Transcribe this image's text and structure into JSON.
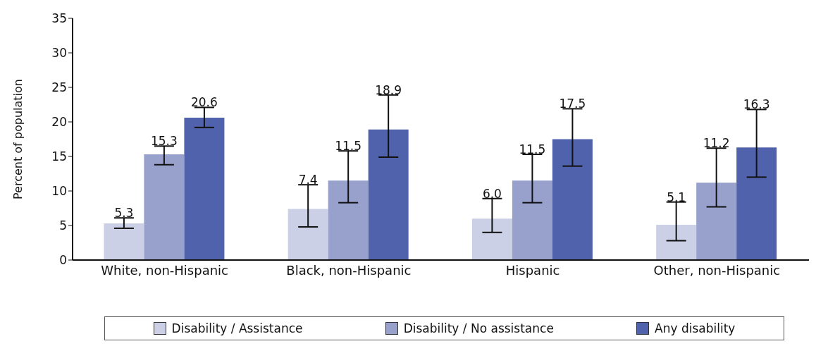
{
  "chart_data": {
    "type": "bar",
    "ylabel": "Percent of population",
    "categories": [
      "White, non-Hispanic",
      "Black, non-Hispanic",
      "Hispanic",
      "Other, non-Hispanic"
    ],
    "series": [
      {
        "name": "Disability / Assistance",
        "color": "#cbd0e6",
        "values": [
          5.3,
          7.4,
          6.0,
          5.1
        ],
        "errors": [
          [
            4.6,
            6.1
          ],
          [
            4.8,
            10.9
          ],
          [
            4.0,
            8.9
          ],
          [
            2.8,
            8.4
          ]
        ],
        "value_labels": [
          "5.3",
          "7.4",
          "6.0",
          "5.1"
        ]
      },
      {
        "name": "Disability / No assistance",
        "color": "#97a1cc",
        "values": [
          15.3,
          11.5,
          11.5,
          11.2
        ],
        "errors": [
          [
            13.8,
            16.5
          ],
          [
            8.3,
            15.8
          ],
          [
            8.3,
            15.3
          ],
          [
            7.7,
            16.2
          ]
        ],
        "value_labels": [
          "15.3",
          "11.5",
          "11.5",
          "11.2"
        ]
      },
      {
        "name": "Any disability",
        "color": "#5162ad",
        "values": [
          20.6,
          18.9,
          17.5,
          16.3
        ],
        "errors": [
          [
            19.2,
            22.1
          ],
          [
            14.9,
            23.9
          ],
          [
            13.6,
            21.9
          ],
          [
            12.0,
            21.8
          ]
        ],
        "value_labels": [
          "20.6",
          "18.9",
          "17.5",
          "16.3"
        ]
      }
    ],
    "ylim": [
      0,
      35
    ],
    "yticks": [
      0,
      5,
      10,
      15,
      20,
      25,
      30,
      35
    ],
    "grid": false,
    "legend": "bottom"
  }
}
